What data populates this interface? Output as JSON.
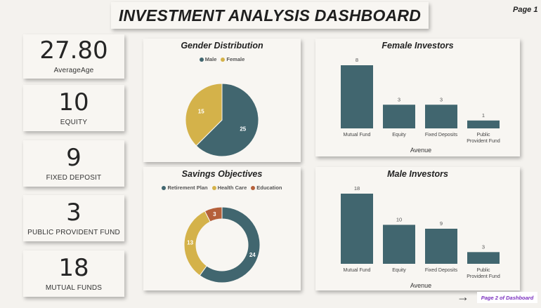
{
  "header": {
    "title": "INVESTMENT ANALYSIS DASHBOARD",
    "page": "Page 1"
  },
  "kpis": [
    {
      "value": "27.80",
      "label": "AverageAge"
    },
    {
      "value": "10",
      "label": "EQUITY"
    },
    {
      "value": "9",
      "label": "FIXED DEPOSIT"
    },
    {
      "value": "3",
      "label": "PUBLIC PROVIDENT FUND"
    },
    {
      "value": "18",
      "label": "MUTUAL FUNDS"
    }
  ],
  "colors": {
    "teal": "#41666f",
    "gold": "#d4b24a",
    "rust": "#b5603a"
  },
  "gender": {
    "title": "Gender Distribution",
    "legend": [
      {
        "label": "Male",
        "color": "#41666f"
      },
      {
        "label": "Female",
        "color": "#d4b24a"
      }
    ]
  },
  "savings": {
    "title": "Savings Objectives",
    "legend": [
      {
        "label": "Retirement Plan",
        "color": "#41666f"
      },
      {
        "label": "Health Care",
        "color": "#d4b24a"
      },
      {
        "label": "Education",
        "color": "#b5603a"
      }
    ]
  },
  "female": {
    "title": "Female Investors",
    "xlabel": "Avenue"
  },
  "male": {
    "title": "Male Investors",
    "xlabel": "Avenue"
  },
  "nav": {
    "arrow": "→",
    "page2": "Page 2 of Dashboard"
  },
  "chart_data": [
    {
      "type": "pie",
      "title": "Gender Distribution",
      "categories": [
        "Male",
        "Female"
      ],
      "values": [
        25,
        15
      ],
      "colors": [
        "#41666f",
        "#d4b24a"
      ],
      "legend": "top"
    },
    {
      "type": "pie",
      "variant": "donut",
      "title": "Savings Objectives",
      "categories": [
        "Retirement Plan",
        "Health Care",
        "Education"
      ],
      "values": [
        24,
        13,
        3
      ],
      "colors": [
        "#41666f",
        "#d4b24a",
        "#b5603a"
      ],
      "legend": "top"
    },
    {
      "type": "bar",
      "title": "Female Investors",
      "categories": [
        "Mutual Fund",
        "Equity",
        "Fixed Deposits",
        "Public Provident Fund"
      ],
      "tick_lines": [
        [
          "Mutual Fund"
        ],
        [
          "Equity"
        ],
        [
          "Fixed Deposits"
        ],
        [
          "Public",
          "Provident Fund"
        ]
      ],
      "values": [
        8,
        3,
        3,
        1
      ],
      "xlabel": "Avenue",
      "ylim": [
        0,
        8
      ],
      "color": "#41666f"
    },
    {
      "type": "bar",
      "title": "Male Investors",
      "categories": [
        "Mutual Fund",
        "Equity",
        "Fixed Deposits",
        "Public Provident Fund"
      ],
      "tick_lines": [
        [
          "Mutual Fund"
        ],
        [
          "Equity"
        ],
        [
          "Fixed Deposits"
        ],
        [
          "Public",
          "Provident Fund"
        ]
      ],
      "values": [
        18,
        10,
        9,
        3
      ],
      "xlabel": "Avenue",
      "ylim": [
        0,
        18
      ],
      "color": "#41666f"
    }
  ]
}
